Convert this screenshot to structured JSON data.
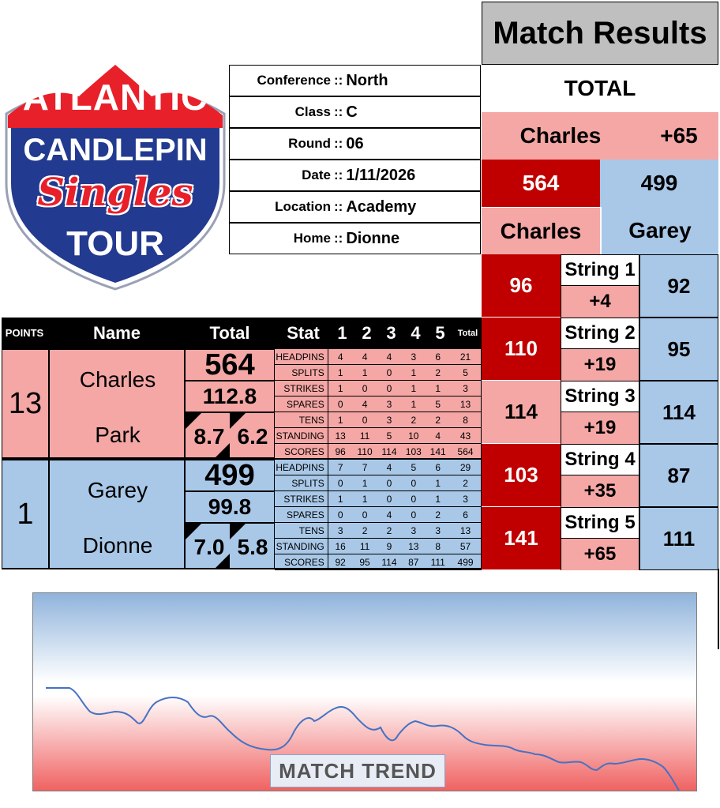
{
  "logo": {
    "line1": "ATLANTIC",
    "line2": "CANDLEPIN",
    "line3": "Singles",
    "line4": "TOUR"
  },
  "info": [
    {
      "label": "Conference",
      "value": "North"
    },
    {
      "label": "Class",
      "value": "C"
    },
    {
      "label": "Round",
      "value": "06"
    },
    {
      "label": "Date",
      "value": "1/11/2026"
    },
    {
      "label": "Location",
      "value": "Academy"
    },
    {
      "label": "Home",
      "value": "Dionne"
    }
  ],
  "separator": "::",
  "results": {
    "title": "Match Results",
    "total_label": "TOTAL",
    "leader": "Charles",
    "margin": "+65",
    "score_a": "564",
    "score_b": "499",
    "name_a": "Charles",
    "name_b": "Garey",
    "strings": [
      {
        "label": "String 1",
        "a": "96",
        "b": "92",
        "diff": "+4"
      },
      {
        "label": "String 2",
        "a": "110",
        "b": "95",
        "diff": "+19"
      },
      {
        "label": "String 3",
        "a": "114",
        "b": "114",
        "diff": "+19"
      },
      {
        "label": "String 4",
        "a": "103",
        "b": "87",
        "diff": "+35"
      },
      {
        "label": "String 5",
        "a": "141",
        "b": "111",
        "diff": "+65"
      }
    ]
  },
  "header": {
    "points": "POINTS",
    "name": "Name",
    "total": "Total",
    "stat": "Stat",
    "cols": [
      "1",
      "2",
      "3",
      "4",
      "5"
    ],
    "total_small": "Total"
  },
  "players": [
    {
      "points": "13",
      "first": "Charles",
      "last": "Park",
      "total": "564",
      "avg": "112.8",
      "left_val": "8.7",
      "right_val": "6.2",
      "stats": [
        {
          "label": "HEADPINS",
          "vals": [
            "4",
            "4",
            "4",
            "3",
            "6"
          ],
          "total": "21"
        },
        {
          "label": "SPLITS",
          "vals": [
            "1",
            "1",
            "0",
            "1",
            "2"
          ],
          "total": "5"
        },
        {
          "label": "STRIKES",
          "vals": [
            "1",
            "0",
            "0",
            "1",
            "1"
          ],
          "total": "3"
        },
        {
          "label": "SPARES",
          "vals": [
            "0",
            "4",
            "3",
            "1",
            "5"
          ],
          "total": "13"
        },
        {
          "label": "TENS",
          "vals": [
            "1",
            "0",
            "3",
            "2",
            "2"
          ],
          "total": "8"
        },
        {
          "label": "STANDING",
          "vals": [
            "13",
            "11",
            "5",
            "10",
            "4"
          ],
          "total": "43"
        },
        {
          "label": "SCORES",
          "vals": [
            "96",
            "110",
            "114",
            "103",
            "141"
          ],
          "total": "564"
        }
      ]
    },
    {
      "points": "1",
      "first": "Garey",
      "last": "Dionne",
      "total": "499",
      "avg": "99.8",
      "left_val": "7.0",
      "right_val": "5.8",
      "stats": [
        {
          "label": "HEADPINS",
          "vals": [
            "7",
            "7",
            "4",
            "5",
            "6"
          ],
          "total": "29"
        },
        {
          "label": "SPLITS",
          "vals": [
            "0",
            "1",
            "0",
            "0",
            "1"
          ],
          "total": "2"
        },
        {
          "label": "STRIKES",
          "vals": [
            "1",
            "1",
            "0",
            "0",
            "1"
          ],
          "total": "3"
        },
        {
          "label": "SPARES",
          "vals": [
            "0",
            "0",
            "4",
            "0",
            "2"
          ],
          "total": "6"
        },
        {
          "label": "TENS",
          "vals": [
            "3",
            "2",
            "2",
            "3",
            "3"
          ],
          "total": "13"
        },
        {
          "label": "STANDING",
          "vals": [
            "16",
            "11",
            "9",
            "13",
            "8"
          ],
          "total": "57"
        },
        {
          "label": "SCORES",
          "vals": [
            "92",
            "95",
            "114",
            "87",
            "111"
          ],
          "total": "499"
        }
      ]
    }
  ],
  "trend": {
    "label": "MATCH TREND",
    "line_color": "#4472c4"
  },
  "colors": {
    "pink": "#f4a7a5",
    "blue": "#a9c8e8",
    "dark_red": "#c00000",
    "gray": "#bfbfbf"
  }
}
